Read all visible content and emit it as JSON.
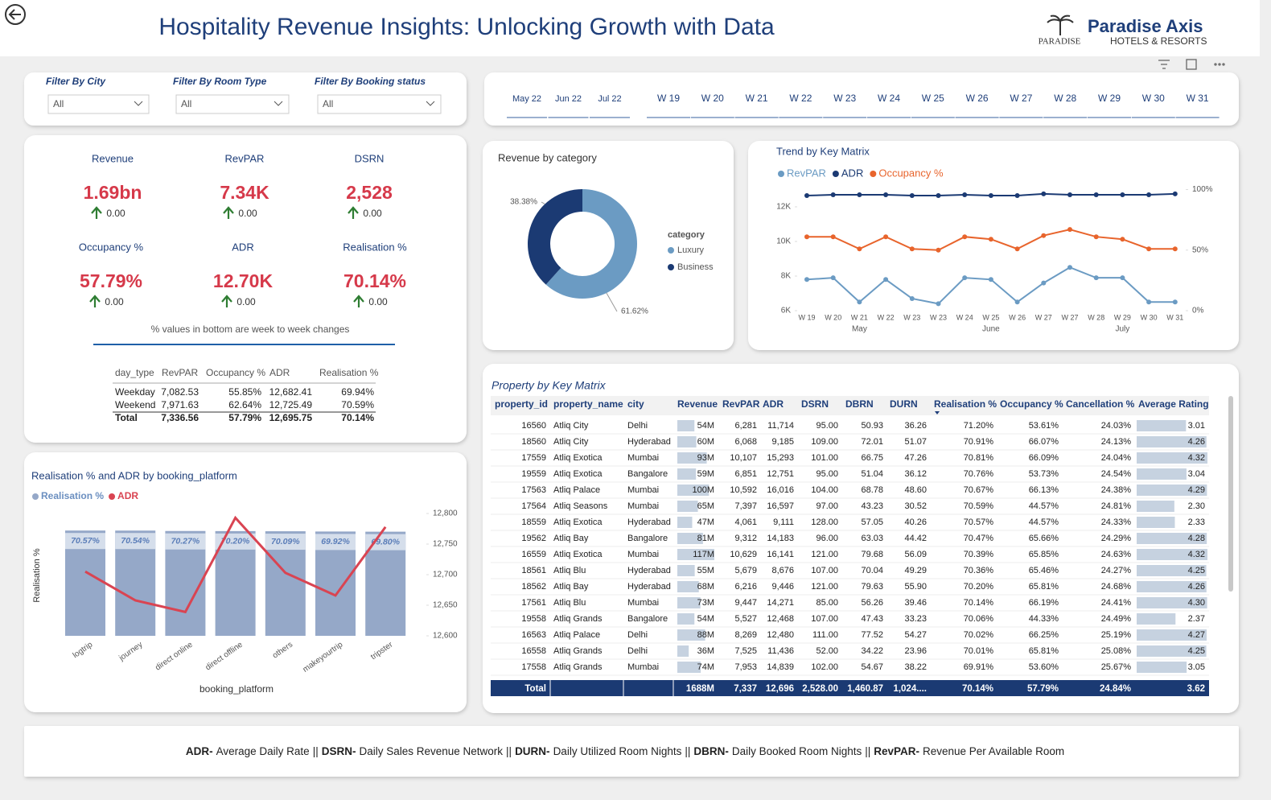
{
  "header": {
    "title": "Hospitality Revenue Insights: Unlocking Growth with Data",
    "logo_mark": "PARADISE",
    "brand": "Paradise Axis",
    "brand_sub": "HOTELS & RESORTS"
  },
  "filters": [
    {
      "label": "Filter By City",
      "value": "All"
    },
    {
      "label": "Filter By Room Type",
      "value": "All"
    },
    {
      "label": "Filter By Booking status",
      "value": "All"
    }
  ],
  "periods": {
    "months": [
      "May 22",
      "Jun 22",
      "Jul 22"
    ],
    "weeks": [
      "W 19",
      "W 20",
      "W 21",
      "W 22",
      "W 23",
      "W 24",
      "W 25",
      "W 26",
      "W 27",
      "W 28",
      "W 29",
      "W 30",
      "W 31"
    ]
  },
  "kpis": [
    {
      "label": "Revenue",
      "value": "1.69bn",
      "change": "0.00"
    },
    {
      "label": "RevPAR",
      "value": "7.34K",
      "change": "0.00"
    },
    {
      "label": "DSRN",
      "value": "2,528",
      "change": "0.00"
    },
    {
      "label": "Occupancy %",
      "value": "57.79%",
      "change": "0.00"
    },
    {
      "label": "ADR",
      "value": "12.70K",
      "change": "0.00"
    },
    {
      "label": "Realisation %",
      "value": "70.14%",
      "change": "0.00"
    }
  ],
  "kpi_note": "% values in bottom are week to week changes",
  "day_type_table": {
    "headers": [
      "day_type",
      "RevPAR",
      "Occupancy %",
      "ADR",
      "Realisation %"
    ],
    "rows": [
      [
        "Weekday",
        "7,082.53",
        "55.85%",
        "12,682.41",
        "69.94%"
      ],
      [
        "Weekend",
        "7,971.63",
        "62.64%",
        "12,725.49",
        "70.59%"
      ],
      [
        "Total",
        "7,336.56",
        "57.79%",
        "12,695.75",
        "70.14%"
      ]
    ]
  },
  "revenue_by_category": {
    "type": "pie",
    "title": "Revenue by category",
    "legend_title": "category",
    "categories": [
      "Luxury",
      "Business"
    ],
    "values": [
      61.62,
      38.38
    ],
    "value_labels": [
      "61.62%",
      "38.38%"
    ],
    "colors": [
      "#6b9bc3",
      "#1b3a73"
    ]
  },
  "trend": {
    "type": "line",
    "title": "Trend by Key Matrix",
    "categories": [
      "W 19",
      "W 20",
      "W 21",
      "W 22",
      "W 23",
      "W 23",
      "W 24",
      "W 25",
      "W 26",
      "W 27",
      "W 27",
      "W 28",
      "W 29",
      "W 30",
      "W 31"
    ],
    "x_groups": [
      "May",
      "June",
      "July"
    ],
    "series": [
      {
        "name": "RevPAR",
        "color": "#6b9bc3",
        "values": [
          7800,
          7900,
          6500,
          7800,
          6700,
          6400,
          7900,
          7800,
          6500,
          7600,
          8500,
          7900,
          7900,
          6500,
          6500
        ]
      },
      {
        "name": "ADR",
        "color": "#1b3a73",
        "values": [
          12650,
          12700,
          12700,
          12700,
          12650,
          12650,
          12700,
          12650,
          12650,
          12750,
          12700,
          12700,
          12700,
          12700,
          12750
        ]
      },
      {
        "name": "Occupancy %",
        "color": "#e8642c",
        "axis": "y2",
        "values": [
          61,
          61,
          51,
          61,
          51,
          50,
          61,
          59,
          51,
          62,
          67,
          61,
          59,
          51,
          51
        ]
      }
    ],
    "ylim": [
      6000,
      13000
    ],
    "yticks": [
      {
        "value": 6000,
        "label": "6K"
      },
      {
        "value": 8000,
        "label": "8K"
      },
      {
        "value": 10000,
        "label": "10K"
      },
      {
        "value": 12000,
        "label": "12K"
      }
    ],
    "y2lim": [
      0,
      100
    ],
    "y2ticks": [
      {
        "value": 0,
        "label": "0%"
      },
      {
        "value": 50,
        "label": "50%"
      },
      {
        "value": 100,
        "label": "100%"
      }
    ]
  },
  "platform": {
    "type": "bar",
    "title": "Realisation % and ADR by booking_platform",
    "x_label": "booking_platform",
    "y_label": "Realisation %",
    "categories": [
      "logtrip",
      "journey",
      "direct online",
      "direct offline",
      "others",
      "makeyourtrip",
      "tripster"
    ],
    "series": [
      {
        "name": "Realisation %",
        "color": "#95a8c8",
        "values": [
          70.57,
          70.54,
          70.27,
          70.2,
          70.09,
          69.92,
          69.8
        ],
        "value_labels": [
          "70.57%",
          "70.54%",
          "70.27%",
          "70.20%",
          "70.09%",
          "69.92%",
          "69.80%"
        ]
      },
      {
        "name": "ADR",
        "color": "#d94452",
        "axis": "y2",
        "values": [
          12705,
          12658,
          12639,
          12793,
          12703,
          12666,
          12778
        ]
      }
    ],
    "ylim": [
      0,
      82
    ],
    "y2lim": [
      12600,
      12800
    ],
    "y2ticks": [
      {
        "value": 12600,
        "label": "12,600"
      },
      {
        "value": 12650,
        "label": "12,650"
      },
      {
        "value": 12700,
        "label": "12,700"
      },
      {
        "value": 12750,
        "label": "12,750"
      },
      {
        "value": 12800,
        "label": "12,800"
      }
    ]
  },
  "property_table": {
    "title": "Property by Key Matrix",
    "headers": [
      "property_id",
      "property_name",
      "city",
      "Revenue",
      "RevPAR",
      "ADR",
      "DSRN",
      "DBRN",
      "DURN",
      "Realisation %",
      "Occupancy %",
      "Cancellation %",
      "Average Rating"
    ],
    "rows": [
      [
        "16560",
        "Atliq City",
        "Delhi",
        "54M",
        "6,281",
        "11,714",
        "95.00",
        "50.93",
        "36.26",
        "71.20%",
        "53.61%",
        "24.03%",
        "3.01"
      ],
      [
        "18560",
        "Atliq City",
        "Hyderabad",
        "60M",
        "6,068",
        "9,185",
        "109.00",
        "72.01",
        "51.07",
        "70.91%",
        "66.07%",
        "24.13%",
        "4.26"
      ],
      [
        "17559",
        "Atliq Exotica",
        "Mumbai",
        "93M",
        "10,107",
        "15,293",
        "101.00",
        "66.75",
        "47.26",
        "70.81%",
        "66.09%",
        "24.04%",
        "4.32"
      ],
      [
        "19559",
        "Atliq Exotica",
        "Bangalore",
        "59M",
        "6,851",
        "12,751",
        "95.00",
        "51.04",
        "36.12",
        "70.76%",
        "53.73%",
        "24.54%",
        "3.04"
      ],
      [
        "17563",
        "Atliq Palace",
        "Mumbai",
        "100M",
        "10,592",
        "16,016",
        "104.00",
        "68.78",
        "48.60",
        "70.67%",
        "66.13%",
        "24.38%",
        "4.29"
      ],
      [
        "17564",
        "Atliq Seasons",
        "Mumbai",
        "65M",
        "7,397",
        "16,597",
        "97.00",
        "43.23",
        "30.52",
        "70.59%",
        "44.57%",
        "24.81%",
        "2.30"
      ],
      [
        "18559",
        "Atliq Exotica",
        "Hyderabad",
        "47M",
        "4,061",
        "9,111",
        "128.00",
        "57.05",
        "40.26",
        "70.57%",
        "44.57%",
        "24.33%",
        "2.33"
      ],
      [
        "19562",
        "Atliq Bay",
        "Bangalore",
        "81M",
        "9,312",
        "14,183",
        "96.00",
        "63.03",
        "44.42",
        "70.47%",
        "65.66%",
        "24.29%",
        "4.28"
      ],
      [
        "16559",
        "Atliq Exotica",
        "Mumbai",
        "117M",
        "10,629",
        "16,141",
        "121.00",
        "79.68",
        "56.09",
        "70.39%",
        "65.85%",
        "24.63%",
        "4.32"
      ],
      [
        "18561",
        "Atliq Blu",
        "Hyderabad",
        "55M",
        "5,679",
        "8,676",
        "107.00",
        "70.04",
        "49.29",
        "70.36%",
        "65.46%",
        "24.27%",
        "4.25"
      ],
      [
        "18562",
        "Atliq Bay",
        "Hyderabad",
        "68M",
        "6,216",
        "9,446",
        "121.00",
        "79.63",
        "55.90",
        "70.20%",
        "65.81%",
        "24.68%",
        "4.26"
      ],
      [
        "17561",
        "Atliq Blu",
        "Mumbai",
        "73M",
        "9,447",
        "14,271",
        "85.00",
        "56.26",
        "39.46",
        "70.14%",
        "66.19%",
        "24.41%",
        "4.30"
      ],
      [
        "19558",
        "Atliq Grands",
        "Bangalore",
        "54M",
        "5,527",
        "12,468",
        "107.00",
        "47.43",
        "33.23",
        "70.06%",
        "44.33%",
        "24.49%",
        "2.37"
      ],
      [
        "16563",
        "Atliq Palace",
        "Delhi",
        "88M",
        "8,269",
        "12,480",
        "111.00",
        "77.52",
        "54.27",
        "70.02%",
        "66.25%",
        "25.19%",
        "4.27"
      ],
      [
        "16558",
        "Atliq Grands",
        "Delhi",
        "36M",
        "7,525",
        "11,436",
        "52.00",
        "34.22",
        "23.96",
        "70.01%",
        "65.81%",
        "25.08%",
        "4.25"
      ],
      [
        "17558",
        "Atliq Grands",
        "Mumbai",
        "74M",
        "7,953",
        "14,839",
        "102.00",
        "54.67",
        "38.22",
        "69.91%",
        "53.60%",
        "25.67%",
        "3.05"
      ]
    ],
    "total": {
      "label": "Total",
      "cells": [
        "1688M",
        "7,337",
        "12,696",
        "2,528.00",
        "1,460.87",
        "1,024....",
        "70.14%",
        "57.79%",
        "24.84%",
        "3.62"
      ]
    }
  },
  "footer": {
    "separator": "||",
    "items": [
      {
        "term": "ADR-",
        "text": "Average Daily Rate"
      },
      {
        "term": "DSRN-",
        "text": "Daily Sales Revenue Network"
      },
      {
        "term": "DURN-",
        "text": "Daily Utilized Room Nights"
      },
      {
        "term": "DBRN-",
        "text": "Daily Booked Room Nights"
      },
      {
        "term": "RevPAR-",
        "text": "Revenue Per Available Room"
      }
    ]
  }
}
